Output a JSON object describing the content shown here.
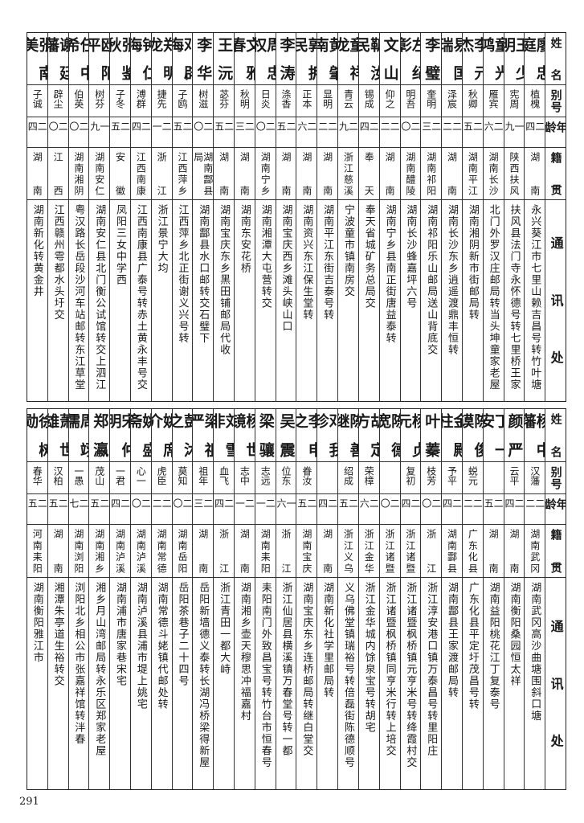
{
  "header": {
    "name": "姓名",
    "alias": "别号",
    "age": "年龄",
    "origin": "籍贯",
    "address": "通讯处"
  },
  "tables": [
    {
      "rows": [
        {
          "name": "廖忠庭",
          "alias": "植槐",
          "age": "二四",
          "origin": "湖南",
          "address": "永兴葵江市七里山赖吉昌号转竹叶塘"
        },
        {
          "name": "王少明",
          "alias": "宪周",
          "age": "一九",
          "origin": "陕西扶风",
          "address": "扶风县法门寺永怀德号转七里桥王家"
        },
        {
          "name": "童光鸿",
          "alias": "雁宾",
          "age": "二六",
          "origin": "湖南长沙",
          "address": "北门外罗汉庄邮局转当头坤童家老屋"
        },
        {
          "name": "李元杰",
          "alias": "秋卿",
          "age": "二五",
          "origin": "湖南平江",
          "address": "湖南湘阴新市街邮局转"
        },
        {
          "name": "易国瑞",
          "alias": "泽宸",
          "age": "二二",
          "origin": "湖南",
          "address": "湖南长沙东乡逍遥渡鼎丰恒转"
        },
        {
          "name": "李璧",
          "alias": "奎明",
          "age": "二三",
          "origin": "湖南祁阳",
          "address": "湖南祁阳乐山邮局送山背底交"
        },
        {
          "name": "左纪彰",
          "alias": "明吾",
          "age": "二〇",
          "origin": "湖南醴陵",
          "address": "湖南长沙蜂嘉坪六号"
        },
        {
          "name": "文山",
          "alias": "仰之",
          "age": "二二",
          "origin": "湖南",
          "address": "湖南宁乡县南正街唐益泰转"
        },
        {
          "name": "靳汝民",
          "alias": "锡成",
          "age": "二四",
          "origin": "奉天",
          "address": "奉天省城矿务总局交"
        },
        {
          "name": "童祥龙",
          "alias": "青云",
          "age": "二九",
          "origin": "浙江慈溪",
          "address": "宁波童市镇南房交"
        },
        {
          "name": "黄肇南",
          "alias": "显明",
          "age": "二二",
          "origin": "湖南",
          "address": "湖南平江东街吉泰号转"
        },
        {
          "name": "郭拥民",
          "alias": "正本",
          "age": "二六",
          "origin": "湖南",
          "address": "湖南资兴东江保生堂转"
        },
        {
          "name": "李涛",
          "alias": "涤香",
          "age": "二五",
          "origin": "湖南",
          "address": "湖南宝庆西乡滩头峡山口"
        },
        {
          "name": "周忠权",
          "alias": "日炎",
          "age": "二〇",
          "origin": "湖南宁乡",
          "address": "湖南湘潭大屯营转交"
        },
        {
          "name": "文雅春",
          "alias": "秋明",
          "age": "二三",
          "origin": "湖南",
          "address": "湖南东安花桥"
        },
        {
          "name": "王沅",
          "alias": "苾芬",
          "age": "二五",
          "origin": "湖南",
          "address": "湖南宝庆东乡黑田铺邮局代收"
        },
        {
          "name": "李华",
          "alias": "树滋",
          "age": "二〇",
          "origin": "湖南酃县局",
          "address": "湖南酃县水口邮转交石璧下"
        },
        {
          "name": "邓辟海",
          "alias": "子鸥",
          "age": "二五",
          "origin": "江西萍乡",
          "address": "江西萍乡北正街谢义兴号转"
        },
        {
          "name": "郑明龙",
          "alias": "捷先",
          "age": "二一",
          "origin": "浙江",
          "address": "浙江景宁大均"
        },
        {
          "name": "钟仁海",
          "alias": "溥群",
          "age": "二四",
          "origin": "江西南康",
          "address": "江西南康县广泰号转赤土黄永丰号交"
        },
        {
          "name": "张鉴秋",
          "alias": "子冬",
          "age": "二五",
          "origin": "安徽",
          "address": "凤阳三女中学西"
        },
        {
          "name": "欧阳平",
          "alias": "树芬",
          "age": "一九",
          "origin": "湖南安仁",
          "address": "湖南安仁县北门衡公试馆转交上泗江"
        },
        {
          "name": "任中希",
          "alias": "伯英",
          "age": "二〇",
          "origin": "湖南湘阴",
          "address": "粤汉路长岳段沙河车站邮转东江草堂"
        },
        {
          "name": "谢廷藩",
          "alias": "辟尘",
          "age": "二〇",
          "origin": "江西",
          "address": "江西赣州雩都水头圩交"
        },
        {
          "name": "张南美",
          "alias": "子诚",
          "age": "二四",
          "origin": "湖南",
          "address": "湖南新化转黄金井"
        }
      ]
    },
    {
      "rows": [
        {
          "name": "杨中藩",
          "alias": "汉藩",
          "age": "二二",
          "origin": "湖南武冈",
          "address": "湖南武冈高沙曲塘围斜口塘"
        },
        {
          "name": "颜严",
          "alias": "云平",
          "age": "二四",
          "origin": "湖南",
          "address": "湖南衡阳桑园恒太祥"
        },
        {
          "name": "丁一安",
          "alias": "",
          "age": "二五",
          "origin": "湖南",
          "address": "湖南益阳桃花江丁复泰号"
        },
        {
          "name": "陈俊谟",
          "alias": "蜕元",
          "age": "二二",
          "origin": "广东化县",
          "address": "广东化县平定圩茂昌号转"
        },
        {
          "name": "金殿柱",
          "alias": "予平",
          "age": "二四",
          "origin": "湖南酃县",
          "address": "湖南酃县王家渡邮局转"
        },
        {
          "name": "叶蓁",
          "alias": "枝芳",
          "age": "二〇",
          "origin": "浙江",
          "address": "浙江淳安港口镇万泰昌号转里阳庄"
        },
        {
          "name": "杨贞元",
          "alias": "复初",
          "age": "二四",
          "origin": "浙江诸暨",
          "address": "浙江诸暨枫桥镇元亨米号转绛霞村交"
        },
        {
          "name": "陈德宽",
          "alias": "",
          "age": "二〇",
          "origin": "浙江诸暨",
          "address": "浙江诸暨枫桥镇同亨米行转上培交"
        },
        {
          "name": "胡定方",
          "alias": "荣樟",
          "age": "二六",
          "origin": "浙江金华",
          "address": "浙江金华城内馀泉宝号转胡宅"
        },
        {
          "name": "陈善继",
          "alias": "绍成",
          "age": "二五",
          "origin": "浙江义乌",
          "address": "义乌佛堂镇瑞裕号转倍磊街陈德顺号"
        },
        {
          "name": "邓我珍",
          "alias": "",
          "age": "二四",
          "origin": "湖南",
          "address": "湖南新化社学里邮局转"
        },
        {
          "name": "李申之",
          "alias": "眷汝",
          "age": "二五",
          "origin": "湖南宝庆",
          "address": "湖南宝庆东乡连桥邮局转继白堂交"
        },
        {
          "name": "吴震",
          "alias": "位东",
          "age": "一六",
          "origin": "浙江",
          "address": "浙江仙居县横溪镇万春堂号转一都"
        },
        {
          "name": "梁骧",
          "alias": "志远",
          "age": "二一",
          "origin": "湖南耒阳",
          "address": "耒阳南门外致昌宝号转竹台市恒春号"
        },
        {
          "name": "杨世镜",
          "alias": "志中",
          "age": "二一",
          "origin": "湖南",
          "address": "湖南湘乡壶天穆思冲福嘉村"
        },
        {
          "name": "刘雪非",
          "alias": "血飞",
          "age": "二四",
          "origin": "浙江",
          "address": "浙江青田一都大峙"
        },
        {
          "name": "梁祖严",
          "alias": "祖年",
          "age": "二三",
          "origin": "湖南",
          "address": "岳阳新墙德义泰转长湖冯桥梁得新屋"
        },
        {
          "name": "彭沐之",
          "alias": "莫知",
          "age": "二〇",
          "origin": "湖南岳阳",
          "address": "岳阳茶巷子二十四号"
        },
        {
          "name": "姚席介",
          "alias": "虎臣",
          "age": "二二",
          "origin": "湖南常德",
          "address": "湖南常德斗姥镇代邮处转"
        },
        {
          "name": "姚盛斋",
          "alias": "心一",
          "age": "二〇",
          "origin": "湖南泸溪",
          "address": "湖南泸溪县浦市堤上姚宅"
        },
        {
          "name": "宋仲明",
          "alias": "一君",
          "age": "二四",
          "origin": "湖南泸溪",
          "address": "湖南浦市唐家巷宋宅"
        },
        {
          "name": "郑瀛",
          "alias": "茂山",
          "age": "二五",
          "origin": "湖南湘乡",
          "address": "湘乡月山湾邮局转永乐区郑家老屋"
        },
        {
          "name": "周翊儒",
          "alias": "一愚",
          "age": "二七",
          "origin": "湖南浏阳",
          "address": "浏阳北乡相公市张嘉祥馆转泮春"
        },
        {
          "name": "萧世雄",
          "alias": "汉柏",
          "age": "二五",
          "origin": "湖南",
          "address": "湘潭朱亭道生裕转交"
        },
        {
          "name": "徐树勋",
          "alias": "春华",
          "age": "二五",
          "origin": "河南耒阳",
          "address": "湖南衡阳雅江市"
        }
      ]
    }
  ],
  "page_number": "291"
}
